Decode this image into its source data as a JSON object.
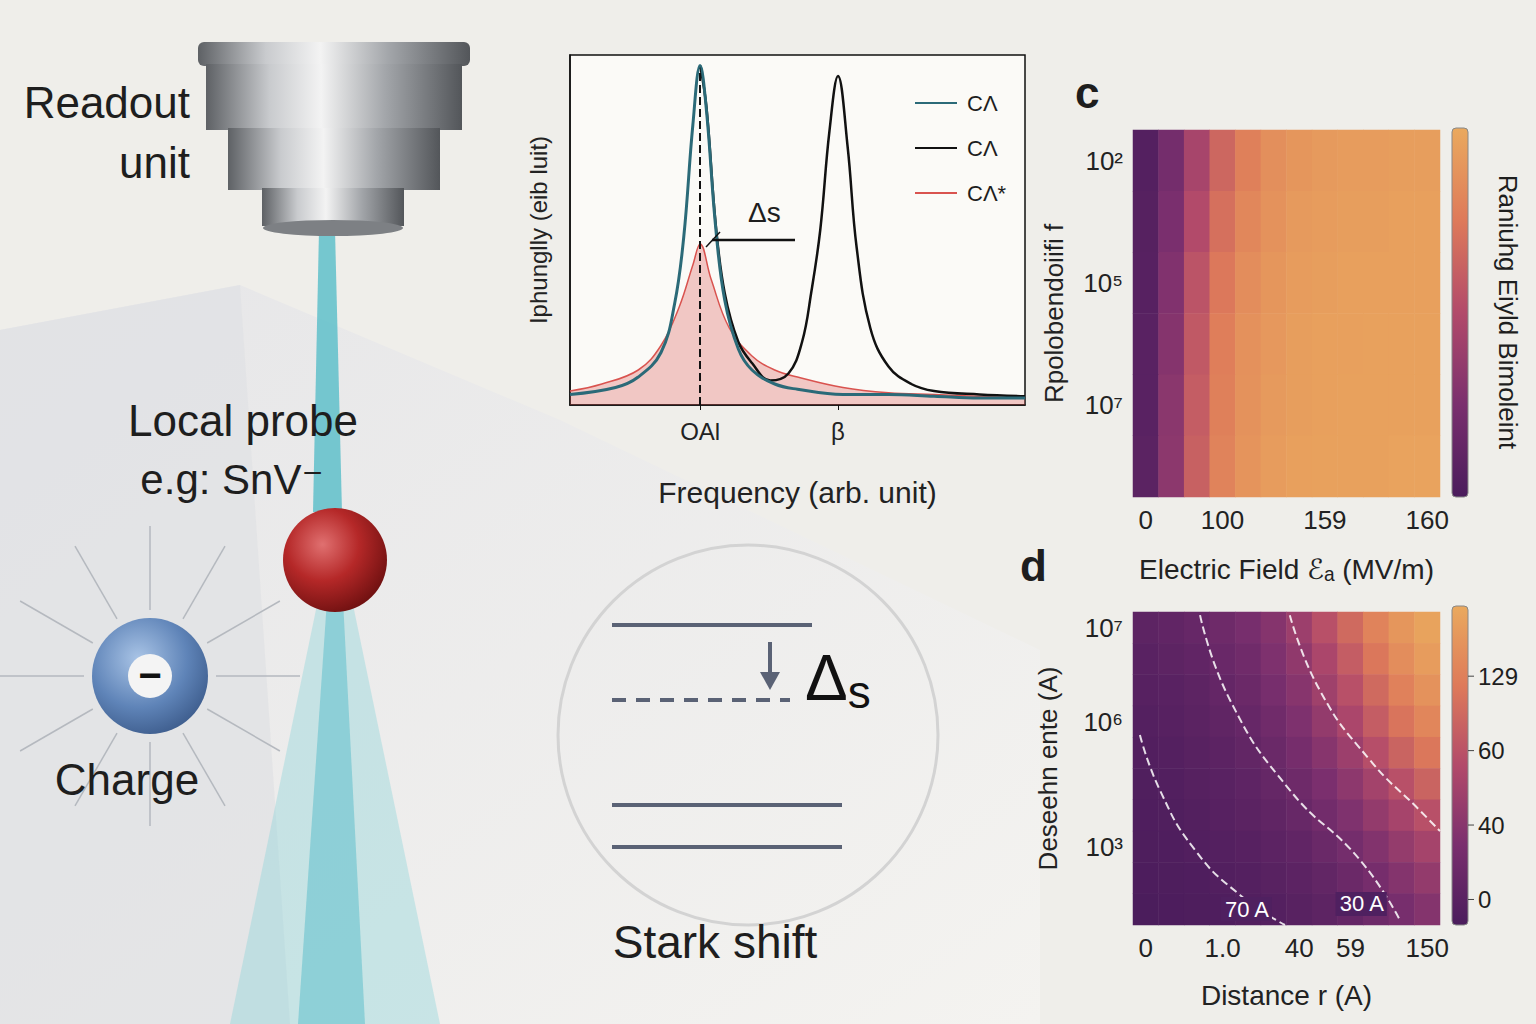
{
  "diagram": {
    "readout_label": "Readout unit",
    "probe_label": "Local probe",
    "probe_example": "e.g: SnV⁻",
    "charge_label": "Charge",
    "charge_symbol": "−",
    "stark_shift_symbol": "Δs",
    "stark_label": "Stark shift"
  },
  "chart_data": [
    {
      "type": "line",
      "xlabel": "Frequency (arb. unit)",
      "ylabel": "Iphunglly (eib luit)",
      "xlim": [
        0,
        10
      ],
      "ylim": [
        0,
        1
      ],
      "xticks": [
        {
          "value": 2.86,
          "label": "OAl"
        },
        {
          "value": 5.89,
          "label": "β"
        }
      ],
      "tick_labels": "x",
      "legend": "top-right",
      "annotation": "Δs",
      "series": [
        {
          "name": "CΛ",
          "color": "#2b6a78",
          "x": [
            0,
            1,
            1.5,
            2,
            2.3,
            2.5,
            2.7,
            2.86,
            3.0,
            3.2,
            3.4,
            3.7,
            4,
            4.5,
            5,
            6,
            7,
            8,
            9,
            10
          ],
          "values": [
            0.03,
            0.05,
            0.08,
            0.15,
            0.29,
            0.48,
            0.8,
            0.97,
            0.84,
            0.51,
            0.3,
            0.16,
            0.1,
            0.06,
            0.045,
            0.03,
            0.03,
            0.025,
            0.02,
            0.02
          ]
        },
        {
          "name": "CΛ",
          "color": "#111111",
          "x": [
            2.86,
            3.0,
            3.2,
            3.4,
            3.7,
            4,
            4.4,
            4.8,
            5.1,
            5.3,
            5.5,
            5.7,
            5.89,
            6.1,
            6.3,
            6.6,
            7,
            7.5,
            8,
            9,
            10
          ],
          "values": [
            0.97,
            0.85,
            0.52,
            0.32,
            0.18,
            0.12,
            0.07,
            0.09,
            0.18,
            0.32,
            0.5,
            0.78,
            0.94,
            0.74,
            0.45,
            0.22,
            0.11,
            0.06,
            0.04,
            0.03,
            0.025
          ]
        },
        {
          "name": "CΛ*",
          "color": "#d9534f",
          "type": "area",
          "x": [
            0,
            0.7,
            1.5,
            2,
            2.4,
            2.7,
            2.86,
            3.1,
            3.5,
            4,
            4.5,
            5,
            6,
            7,
            8,
            10
          ],
          "values": [
            0.04,
            0.06,
            0.1,
            0.17,
            0.28,
            0.4,
            0.46,
            0.36,
            0.22,
            0.14,
            0.1,
            0.08,
            0.05,
            0.035,
            0.03,
            0.02
          ]
        }
      ]
    },
    {
      "type": "heatmap",
      "panel": "c",
      "xlabel": "Electric Field ℰₐ (MV/m)",
      "ylabel": "Rpolobendoiifi f",
      "categories": [
        "0",
        null,
        null,
        "100",
        null,
        null,
        null,
        "159",
        null,
        null,
        null,
        "160"
      ],
      "y_categories": [
        "10²",
        null,
        "10⁵",
        null,
        "10⁷",
        null
      ],
      "cells": [
        [
          0.05,
          0.22,
          0.45,
          0.65,
          0.78,
          0.86,
          0.9,
          0.92,
          0.93,
          0.93,
          0.94,
          0.94
        ],
        [
          0.06,
          0.25,
          0.5,
          0.7,
          0.82,
          0.88,
          0.92,
          0.93,
          0.94,
          0.94,
          0.95,
          0.95
        ],
        [
          0.07,
          0.28,
          0.55,
          0.74,
          0.85,
          0.9,
          0.93,
          0.94,
          0.95,
          0.95,
          0.95,
          0.95
        ],
        [
          0.08,
          0.3,
          0.58,
          0.77,
          0.87,
          0.91,
          0.94,
          0.95,
          0.95,
          0.96,
          0.96,
          0.96
        ],
        [
          0.08,
          0.32,
          0.6,
          0.78,
          0.88,
          0.92,
          0.94,
          0.95,
          0.96,
          0.96,
          0.96,
          0.96
        ],
        [
          0.09,
          0.33,
          0.62,
          0.8,
          0.89,
          0.93,
          0.95,
          0.96,
          0.96,
          0.96,
          0.97,
          0.97
        ]
      ],
      "colorbar_label": "Raniuhg Eiyld Bimoleint",
      "colorbar_range": [
        0,
        1
      ]
    },
    {
      "type": "heatmap",
      "panel": "d",
      "xlabel": "Distance r (A)",
      "ylabel": "Deseehn ente (A)",
      "categories": [
        "0",
        null,
        null,
        "1.0",
        null,
        null,
        "40",
        null,
        "59",
        null,
        null,
        "150"
      ],
      "y_categories": [
        "10⁷",
        null,
        null,
        "10⁶",
        null,
        null,
        null,
        "10³",
        null,
        null
      ],
      "cells": [
        [
          15,
          18,
          22,
          28,
          35,
          45,
          60,
          80,
          100,
          120,
          135,
          145
        ],
        [
          12,
          15,
          18,
          24,
          30,
          40,
          52,
          70,
          90,
          110,
          128,
          140
        ],
        [
          10,
          12,
          15,
          20,
          26,
          35,
          46,
          62,
          80,
          100,
          118,
          132
        ],
        [
          8,
          10,
          13,
          17,
          22,
          30,
          40,
          54,
          70,
          90,
          108,
          122
        ],
        [
          6,
          8,
          11,
          14,
          19,
          25,
          34,
          46,
          60,
          78,
          95,
          110
        ],
        [
          5,
          6,
          9,
          12,
          16,
          21,
          28,
          38,
          50,
          65,
          80,
          95
        ],
        [
          4,
          5,
          7,
          10,
          13,
          17,
          23,
          31,
          41,
          54,
          67,
          80
        ],
        [
          3,
          4,
          6,
          8,
          10,
          14,
          18,
          25,
          33,
          43,
          55,
          66
        ],
        [
          2,
          3,
          4,
          6,
          8,
          11,
          14,
          19,
          26,
          34,
          44,
          54
        ],
        [
          1,
          2,
          3,
          4,
          6,
          8,
          11,
          15,
          20,
          27,
          35,
          44
        ]
      ],
      "colorbar_range": [
        0,
        150
      ],
      "colorbar_labels": [
        "129",
        "60",
        "40",
        "0"
      ],
      "contours": [
        {
          "label": "70 A",
          "points": [
            [
              0.27,
              6.07
            ],
            [
              1.05,
              4.31
            ],
            [
              2.42,
              2.4
            ],
            [
              4.18,
              0.96
            ],
            [
              5.94,
              0
            ]
          ]
        },
        {
          "label": "30 A",
          "points": [
            [
              2.62,
              9.9
            ],
            [
              3.79,
              7.19
            ],
            [
              6.13,
              4.31
            ],
            [
              8.87,
              2.08
            ],
            [
              10.43,
              0.16
            ]
          ]
        },
        {
          "points": [
            [
              6.13,
              9.9
            ],
            [
              7.3,
              7.5
            ],
            [
              9.26,
              5.27
            ],
            [
              11.2,
              3.67
            ],
            [
              12,
              3.0
            ]
          ]
        }
      ]
    }
  ]
}
